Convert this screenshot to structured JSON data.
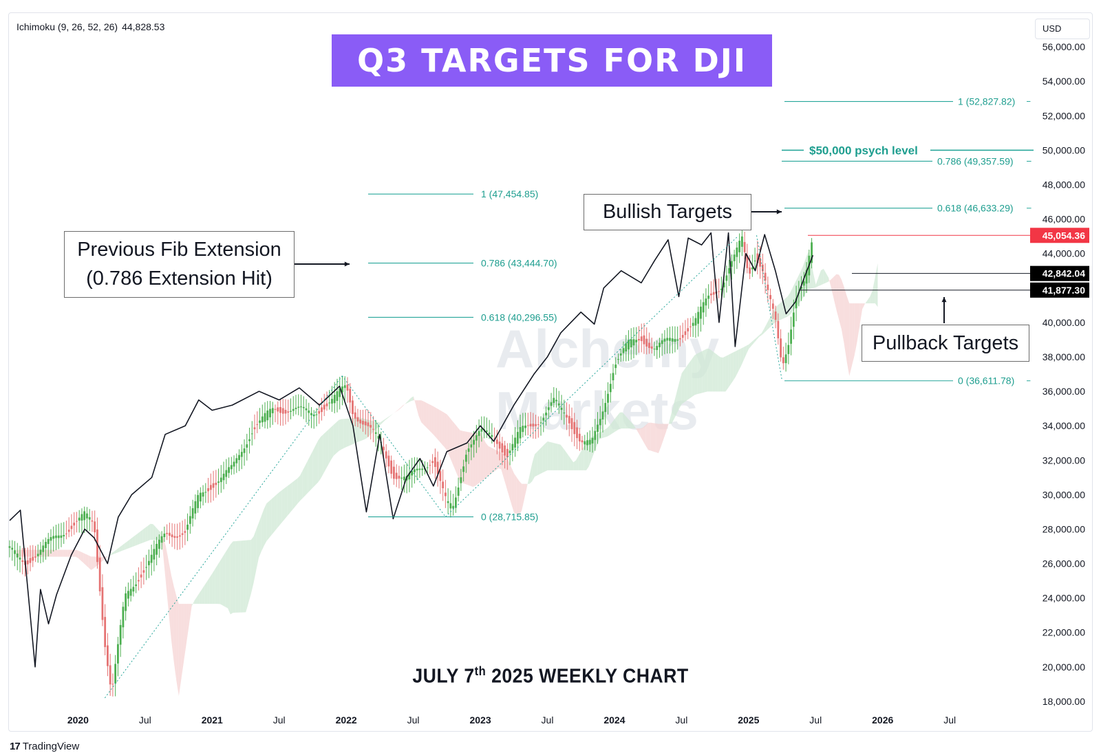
{
  "indicator": {
    "label": "Ichimoku (9, 26, 52, 26)",
    "value": "44,828.53"
  },
  "title": "Q3 TARGETS FOR DJI",
  "currency": "USD",
  "footer": {
    "caption_main": "JULY 7",
    "caption_sup": "th",
    "caption_rest": " 2025 WEEKLY CHART"
  },
  "brand": {
    "logo": "17",
    "name": "TradingView"
  },
  "watermark": {
    "line1": "Alchemy",
    "line2": "Markets"
  },
  "annotations": {
    "previous_fib": [
      "Previous Fib Extension",
      "(0.786 Extension Hit)"
    ],
    "bullish": "Bullish Targets",
    "pullback": "Pullback Targets",
    "psych": "$50,000 psych level"
  },
  "colors": {
    "fib_line": "#26a69a",
    "fib_label": "#1e9e8f",
    "title_bg": "#8a5cf6",
    "price_red": "#f23645",
    "label_black": "#000000",
    "candle_up": "#4caf50",
    "candle_down": "#e57373",
    "cloud_green": "#cfe8d4",
    "cloud_red": "#f6d3d3"
  },
  "chart_data": {
    "type": "line",
    "title": "Q3 TARGETS FOR DJI",
    "subtitle": "JULY 7th 2025 WEEKLY CHART",
    "xlabel": "",
    "ylabel": "",
    "y_axis_side": "right",
    "ylim": [
      16800,
      58000
    ],
    "y_ticks": [
      "56,000.00",
      "54,000.00",
      "52,000.00",
      "50,000.00",
      "48,000.00",
      "46,000.00",
      "44,000.00",
      "42,000.00",
      "40,000.00",
      "38,000.00",
      "36,000.00",
      "34,000.00",
      "32,000.00",
      "30,000.00",
      "28,000.00",
      "26,000.00",
      "24,000.00",
      "22,000.00",
      "20,000.00",
      "18,000.00"
    ],
    "y_tick_values": [
      56000,
      54000,
      52000,
      50000,
      48000,
      46000,
      44000,
      42000,
      40000,
      38000,
      36000,
      34000,
      32000,
      30000,
      28000,
      26000,
      24000,
      22000,
      20000,
      18000
    ],
    "x_range": [
      2019.49,
      2026.92
    ],
    "x_ticks": [
      {
        "t": 2020.0,
        "label": "2020",
        "bold": true
      },
      {
        "t": 2020.5,
        "label": "Jul",
        "bold": false
      },
      {
        "t": 2021.0,
        "label": "2021",
        "bold": true
      },
      {
        "t": 2021.5,
        "label": "Jul",
        "bold": false
      },
      {
        "t": 2022.0,
        "label": "2022",
        "bold": true
      },
      {
        "t": 2022.5,
        "label": "Jul",
        "bold": false
      },
      {
        "t": 2023.0,
        "label": "2023",
        "bold": true
      },
      {
        "t": 2023.5,
        "label": "Jul",
        "bold": false
      },
      {
        "t": 2024.0,
        "label": "2024",
        "bold": true
      },
      {
        "t": 2024.5,
        "label": "Jul",
        "bold": false
      },
      {
        "t": 2025.0,
        "label": "2025",
        "bold": true
      },
      {
        "t": 2025.5,
        "label": "Jul",
        "bold": false
      },
      {
        "t": 2026.0,
        "label": "2026",
        "bold": true
      },
      {
        "t": 2026.5,
        "label": "Jul",
        "bold": false
      }
    ],
    "price_series": {
      "t": [
        2019.49,
        2019.6,
        2019.75,
        2019.9,
        2020.05,
        2020.12,
        2020.2,
        2020.25,
        2020.35,
        2020.5,
        2020.65,
        2020.8,
        2020.9,
        2021.0,
        2021.15,
        2021.3,
        2021.45,
        2021.6,
        2021.75,
        2021.9,
        2022.0,
        2022.05,
        2022.15,
        2022.25,
        2022.35,
        2022.45,
        2022.55,
        2022.65,
        2022.75,
        2022.8,
        2022.9,
        2023.0,
        2023.1,
        2023.2,
        2023.3,
        2023.45,
        2023.55,
        2023.65,
        2023.75,
        2023.83,
        2023.9,
        2024.0,
        2024.1,
        2024.2,
        2024.3,
        2024.4,
        2024.5,
        2024.6,
        2024.7,
        2024.8,
        2024.9,
        2024.95,
        2025.0,
        2025.05,
        2025.1,
        2025.15,
        2025.2,
        2025.25,
        2025.3,
        2025.35,
        2025.42,
        2025.48
      ],
      "close": [
        26800,
        26000,
        27000,
        27900,
        28800,
        28200,
        21500,
        18500,
        24000,
        25800,
        27700,
        27800,
        29900,
        30600,
        31500,
        33800,
        34900,
        35000,
        34700,
        35500,
        36300,
        34800,
        34000,
        33100,
        31200,
        30900,
        31500,
        32100,
        29400,
        29200,
        32800,
        33600,
        33400,
        32300,
        33700,
        34400,
        35400,
        34500,
        33100,
        32900,
        34500,
        37600,
        38700,
        39100,
        38500,
        38900,
        39300,
        40000,
        41500,
        42200,
        43800,
        44900,
        42800,
        43900,
        43200,
        41500,
        40000,
        37400,
        39000,
        41500,
        42300,
        44800
      ]
    },
    "ichimoku_line": {
      "t": [
        2019.49,
        2019.57,
        2019.68,
        2019.72,
        2019.78,
        2019.84,
        2019.95,
        2020.05,
        2020.12,
        2020.22,
        2020.3,
        2020.4,
        2020.55,
        2020.65,
        2020.8,
        2020.9,
        2021.0,
        2021.15,
        2021.35,
        2021.5,
        2021.65,
        2021.8,
        2021.95,
        2022.05,
        2022.15,
        2022.25,
        2022.35,
        2022.45,
        2022.55,
        2022.65,
        2022.75,
        2022.9,
        2023.0,
        2023.1,
        2023.25,
        2023.4,
        2023.5,
        2023.6,
        2023.75,
        2023.85,
        2023.92,
        2024.05,
        2024.2,
        2024.3,
        2024.4,
        2024.48,
        2024.55,
        2024.65,
        2024.72,
        2024.78,
        2024.85,
        2024.9,
        2024.98,
        2025.05,
        2025.12,
        2025.2,
        2025.28,
        2025.35,
        2025.42,
        2025.48
      ],
      "values": [
        28500,
        29100,
        20000,
        24500,
        22500,
        24200,
        26500,
        28000,
        27500,
        26000,
        28700,
        30000,
        31000,
        33500,
        34000,
        35500,
        34900,
        35200,
        36000,
        35500,
        36200,
        35200,
        36300,
        34000,
        29000,
        33500,
        28600,
        31000,
        32100,
        30500,
        32500,
        33000,
        34000,
        33100,
        35200,
        37000,
        38000,
        39400,
        40600,
        39900,
        42000,
        43000,
        42300,
        43600,
        44800,
        41500,
        44900,
        44500,
        45200,
        40000,
        45200,
        38600,
        44000,
        43000,
        45100,
        43000,
        40500,
        41200,
        42700,
        43900
      ]
    },
    "fib_levels": [
      {
        "group": "previous",
        "ratio": "1",
        "value": 47454.85,
        "label": "1 (47,454.85)"
      },
      {
        "group": "previous",
        "ratio": "0.786",
        "value": 43444.7,
        "label": "0.786 (43,444.70)"
      },
      {
        "group": "previous",
        "ratio": "0.618",
        "value": 40296.55,
        "label": "0.618 (40,296.55)"
      },
      {
        "group": "previous",
        "ratio": "0",
        "value": 28715.85,
        "label": "0 (28,715.85)"
      },
      {
        "group": "current",
        "ratio": "1",
        "value": 52827.82,
        "label": "1 (52,827.82)"
      },
      {
        "group": "current",
        "ratio": "0.786",
        "value": 49357.59,
        "label": "0.786 (49,357.59)"
      },
      {
        "group": "current",
        "ratio": "0.618",
        "value": 46633.29,
        "label": "0.618 (46,633.29)"
      },
      {
        "group": "current",
        "ratio": "0",
        "value": 36611.78,
        "label": "0 (36,611.78)"
      }
    ],
    "price_labels": [
      {
        "value": 45054.36,
        "label": "45,054.36",
        "style": "red"
      },
      {
        "value": 42842.04,
        "label": "42,842.04",
        "style": "black"
      },
      {
        "value": 41877.3,
        "label": "41,877.30",
        "style": "black"
      }
    ],
    "psych_level": {
      "value": 50000,
      "label": "$50,000 psych level"
    },
    "grid": false,
    "legend": "none"
  }
}
